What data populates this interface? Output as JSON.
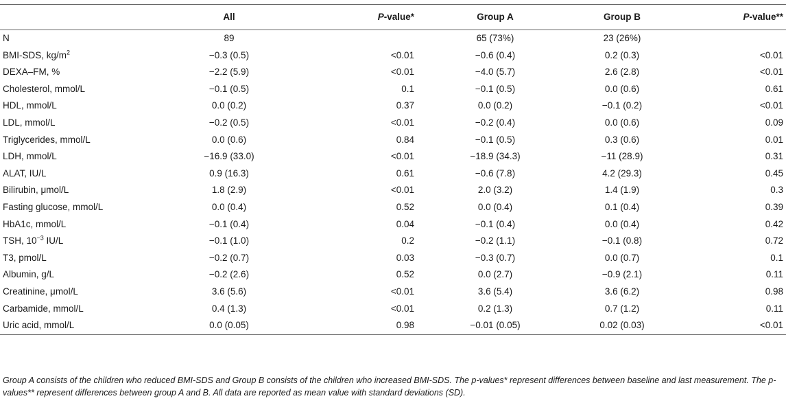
{
  "header": {
    "col0": "",
    "col1": "All",
    "col2_pre": "P",
    "col2_post": "-value*",
    "col3": "Group A",
    "col4": "Group B",
    "col5_pre": "P",
    "col5_post": "-value**"
  },
  "rows": [
    {
      "label": "N",
      "sup": "",
      "suffix": "",
      "all": "89",
      "p1": "",
      "a": "65 (73%)",
      "b": "23 (26%)",
      "p2": ""
    },
    {
      "label": "BMI-SDS, kg/m",
      "sup": "2",
      "suffix": "",
      "all": "−0.3 (0.5)",
      "p1": "<0.01",
      "a": "−0.6 (0.4)",
      "b": "0.2 (0.3)",
      "p2": "<0.01"
    },
    {
      "label": "DEXA–FM, %",
      "sup": "",
      "suffix": "",
      "all": "−2.2 (5.9)",
      "p1": "<0.01",
      "a": "−4.0 (5.7)",
      "b": "2.6 (2.8)",
      "p2": "<0.01"
    },
    {
      "label": "Cholesterol, mmol/L",
      "sup": "",
      "suffix": "",
      "all": "−0.1 (0.5)",
      "p1": "0.1",
      "a": "−0.1 (0.5)",
      "b": "0.0 (0.6)",
      "p2": "0.61"
    },
    {
      "label": "HDL, mmol/L",
      "sup": "",
      "suffix": "",
      "all": "0.0 (0.2)",
      "p1": "0.37",
      "a": "0.0 (0.2)",
      "b": "−0.1 (0.2)",
      "p2": "<0.01"
    },
    {
      "label": "LDL, mmol/L",
      "sup": "",
      "suffix": "",
      "all": "−0.2 (0.5)",
      "p1": "<0.01",
      "a": "−0.2 (0.4)",
      "b": "0.0 (0.6)",
      "p2": "0.09"
    },
    {
      "label": "Triglycerides, mmol/L",
      "sup": "",
      "suffix": "",
      "all": "0.0 (0.6)",
      "p1": "0.84",
      "a": "−0.1 (0.5)",
      "b": "0.3 (0.6)",
      "p2": "0.01"
    },
    {
      "label": "LDH, mmol/L",
      "sup": "",
      "suffix": "",
      "all": "−16.9 (33.0)",
      "p1": "<0.01",
      "a": "−18.9 (34.3)",
      "b": "−11 (28.9)",
      "p2": "0.31"
    },
    {
      "label": "ALAT, IU/L",
      "sup": "",
      "suffix": "",
      "all": "0.9 (16.3)",
      "p1": "0.61",
      "a": "−0.6 (7.8)",
      "b": "4.2 (29.3)",
      "p2": "0.45"
    },
    {
      "label": "Bilirubin, μmol/L",
      "sup": "",
      "suffix": "",
      "all": "1.8 (2.9)",
      "p1": "<0.01",
      "a": "2.0 (3.2)",
      "b": "1.4 (1.9)",
      "p2": "0.3"
    },
    {
      "label": "Fasting glucose, mmol/L",
      "sup": "",
      "suffix": "",
      "all": "0.0 (0.4)",
      "p1": "0.52",
      "a": "0.0 (0.4)",
      "b": "0.1 (0.4)",
      "p2": "0.39"
    },
    {
      "label": "HbA1c, mmol/L",
      "sup": "",
      "suffix": "",
      "all": "−0.1 (0.4)",
      "p1": "0.04",
      "a": "−0.1 (0.4)",
      "b": "0.0 (0.4)",
      "p2": "0.42"
    },
    {
      "label": "TSH, 10",
      "sup": "−3",
      "suffix": " IU/L",
      "all": "−0.1 (1.0)",
      "p1": "0.2",
      "a": "−0.2 (1.1)",
      "b": "−0.1 (0.8)",
      "p2": "0.72"
    },
    {
      "label": "T3, pmol/L",
      "sup": "",
      "suffix": "",
      "all": "−0.2 (0.7)",
      "p1": "0.03",
      "a": "−0.3 (0.7)",
      "b": "0.0 (0.7)",
      "p2": "0.1"
    },
    {
      "label": "Albumin, g/L",
      "sup": "",
      "suffix": "",
      "all": "−0.2 (2.6)",
      "p1": "0.52",
      "a": "0.0 (2.7)",
      "b": "−0.9 (2.1)",
      "p2": "0.11"
    },
    {
      "label": "Creatinine, μmol/L",
      "sup": "",
      "suffix": "",
      "all": "3.6 (5.6)",
      "p1": "<0.01",
      "a": "3.6 (5.4)",
      "b": "3.6 (6.2)",
      "p2": "0.98"
    },
    {
      "label": "Carbamide, mmol/L",
      "sup": "",
      "suffix": "",
      "all": "0.4 (1.3)",
      "p1": "<0.01",
      "a": "0.2 (1.3)",
      "b": "0.7 (1.2)",
      "p2": "0.11"
    },
    {
      "label": "Uric acid, mmol/L",
      "sup": "",
      "suffix": "",
      "all": "0.0 (0.05)",
      "p1": "0.98",
      "a": "−0.01 (0.05)",
      "b": "0.02 (0.03)",
      "p2": "<0.01"
    }
  ],
  "footnote": "Group A consists of the children who reduced BMI-SDS and Group B consists of the children who increased BMI-SDS. The p-values* represent differences between baseline and last measurement. The p-values** represent differences between group A and B. All data are reported as mean value with standard deviations (SD)."
}
